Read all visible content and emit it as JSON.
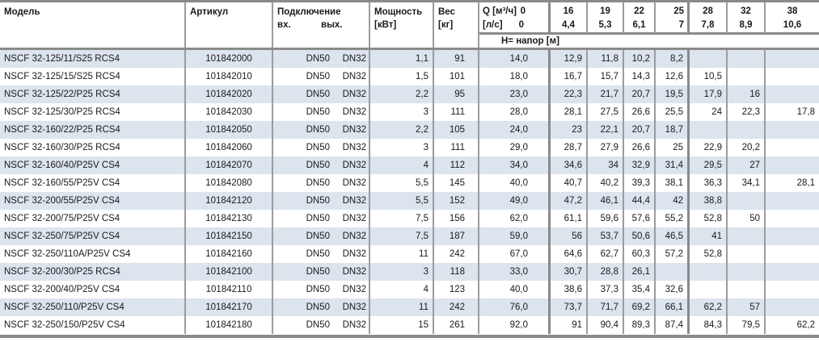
{
  "colors": {
    "stripe": "#dce4ee",
    "border": "#9c9c9c",
    "border_strong": "#8a8a8a",
    "text": "#1a1a1a"
  },
  "table": {
    "columns": {
      "model": "Модель",
      "article": "Артикул",
      "connection": "Подключение",
      "inlet": "вх.",
      "outlet": "вых.",
      "power_l1": "Мощность",
      "power_l2": "[кВт]",
      "weight_l1": "Вес",
      "weight_l2": "[кг]",
      "flow_l1_label": "Q [м³/ч]",
      "flow_l1_value": "0",
      "flow_l2_label": "[л/с]",
      "flow_l2_value": "0",
      "head_header": "Н= напор [м]"
    },
    "flow_columns": [
      {
        "m3h": "16",
        "ls": "4,4"
      },
      {
        "m3h": "19",
        "ls": "5,3"
      },
      {
        "m3h": "22",
        "ls": "6,1"
      },
      {
        "m3h": "25",
        "ls": "7"
      },
      {
        "m3h": "28",
        "ls": "7,8"
      },
      {
        "m3h": "32",
        "ls": "8,9"
      },
      {
        "m3h": "38",
        "ls": "10,6"
      }
    ],
    "rows": [
      {
        "model": "NSCF 32-125/11/S25 RCS4",
        "article": "101842000",
        "inlet": "DN50",
        "outlet": "DN32",
        "power": "1,1",
        "weight": "91",
        "heads": [
          "14,0",
          "12,9",
          "11,8",
          "10,2",
          "8,2",
          "",
          "",
          ""
        ]
      },
      {
        "model": "NSCF 32-125/15/S25 RCS4",
        "article": "101842010",
        "inlet": "DN50",
        "outlet": "DN32",
        "power": "1,5",
        "weight": "101",
        "heads": [
          "18,0",
          "16,7",
          "15,7",
          "14,3",
          "12,6",
          "10,5",
          "",
          ""
        ]
      },
      {
        "model": "NSCF 32-125/22/P25 RCS4",
        "article": "101842020",
        "inlet": "DN50",
        "outlet": "DN32",
        "power": "2,2",
        "weight": "95",
        "heads": [
          "23,0",
          "22,3",
          "21,7",
          "20,7",
          "19,5",
          "17,9",
          "16",
          ""
        ]
      },
      {
        "model": "NSCF 32-125/30/P25 RCS4",
        "article": "101842030",
        "inlet": "DN50",
        "outlet": "DN32",
        "power": "3",
        "weight": "111",
        "heads": [
          "28,0",
          "28,1",
          "27,5",
          "26,6",
          "25,5",
          "24",
          "22,3",
          "17,8"
        ]
      },
      {
        "model": "NSCF 32-160/22/P25 RCS4",
        "article": "101842050",
        "inlet": "DN50",
        "outlet": "DN32",
        "power": "2,2",
        "weight": "105",
        "heads": [
          "24,0",
          "23",
          "22,1",
          "20,7",
          "18,7",
          "",
          "",
          ""
        ]
      },
      {
        "model": "NSCF 32-160/30/P25 RCS4",
        "article": "101842060",
        "inlet": "DN50",
        "outlet": "DN32",
        "power": "3",
        "weight": "111",
        "heads": [
          "29,0",
          "28,7",
          "27,9",
          "26,6",
          "25",
          "22,9",
          "20,2",
          ""
        ]
      },
      {
        "model": "NSCF 32-160/40/P25V CS4",
        "article": "101842070",
        "inlet": "DN50",
        "outlet": "DN32",
        "power": "4",
        "weight": "112",
        "heads": [
          "34,0",
          "34,6",
          "34",
          "32,9",
          "31,4",
          "29,5",
          "27",
          ""
        ]
      },
      {
        "model": "NSCF 32-160/55/P25V CS4",
        "article": "101842080",
        "inlet": "DN50",
        "outlet": "DN32",
        "power": "5,5",
        "weight": "145",
        "heads": [
          "40,0",
          "40,7",
          "40,2",
          "39,3",
          "38,1",
          "36,3",
          "34,1",
          "28,1"
        ]
      },
      {
        "model": "NSCF 32-200/55/P25V CS4",
        "article": "101842120",
        "inlet": "DN50",
        "outlet": "DN32",
        "power": "5,5",
        "weight": "152",
        "heads": [
          "49,0",
          "47,2",
          "46,1",
          "44,4",
          "42",
          "38,8",
          "",
          ""
        ]
      },
      {
        "model": "NSCF 32-200/75/P25V CS4",
        "article": "101842130",
        "inlet": "DN50",
        "outlet": "DN32",
        "power": "7,5",
        "weight": "156",
        "heads": [
          "62,0",
          "61,1",
          "59,6",
          "57,6",
          "55,2",
          "52,8",
          "50",
          ""
        ]
      },
      {
        "model": "NSCF 32-250/75/P25V CS4",
        "article": "101842150",
        "inlet": "DN50",
        "outlet": "DN32",
        "power": "7,5",
        "weight": "187",
        "heads": [
          "59,0",
          "56",
          "53,7",
          "50,6",
          "46,5",
          "41",
          "",
          ""
        ]
      },
      {
        "model": "NSCF 32-250/110A/P25V CS4",
        "article": "101842160",
        "inlet": "DN50",
        "outlet": "DN32",
        "power": "11",
        "weight": "242",
        "heads": [
          "67,0",
          "64,6",
          "62,7",
          "60,3",
          "57,2",
          "52,8",
          "",
          ""
        ]
      },
      {
        "model": "NSCF 32-200/30/P25 RCS4",
        "article": "101842100",
        "inlet": "DN50",
        "outlet": "DN32",
        "power": "3",
        "weight": "118",
        "heads": [
          "33,0",
          "30,7",
          "28,8",
          "26,1",
          "",
          "",
          "",
          ""
        ]
      },
      {
        "model": "NSCF 32-200/40/P25V CS4",
        "article": "101842110",
        "inlet": "DN50",
        "outlet": "DN32",
        "power": "4",
        "weight": "123",
        "heads": [
          "40,0",
          "38,6",
          "37,3",
          "35,4",
          "32,6",
          "",
          "",
          ""
        ]
      },
      {
        "model": "NSCF 32-250/110/P25V CS4",
        "article": "101842170",
        "inlet": "DN50",
        "outlet": "DN32",
        "power": "11",
        "weight": "242",
        "heads": [
          "76,0",
          "73,7",
          "71,7",
          "69,2",
          "66,1",
          "62,2",
          "57",
          ""
        ]
      },
      {
        "model": "NSCF 32-250/150/P25V CS4",
        "article": "101842180",
        "inlet": "DN50",
        "outlet": "DN32",
        "power": "15",
        "weight": "261",
        "heads": [
          "92,0",
          "91",
          "90,4",
          "89,3",
          "87,4",
          "84,3",
          "79,5",
          "62,2"
        ]
      }
    ]
  }
}
